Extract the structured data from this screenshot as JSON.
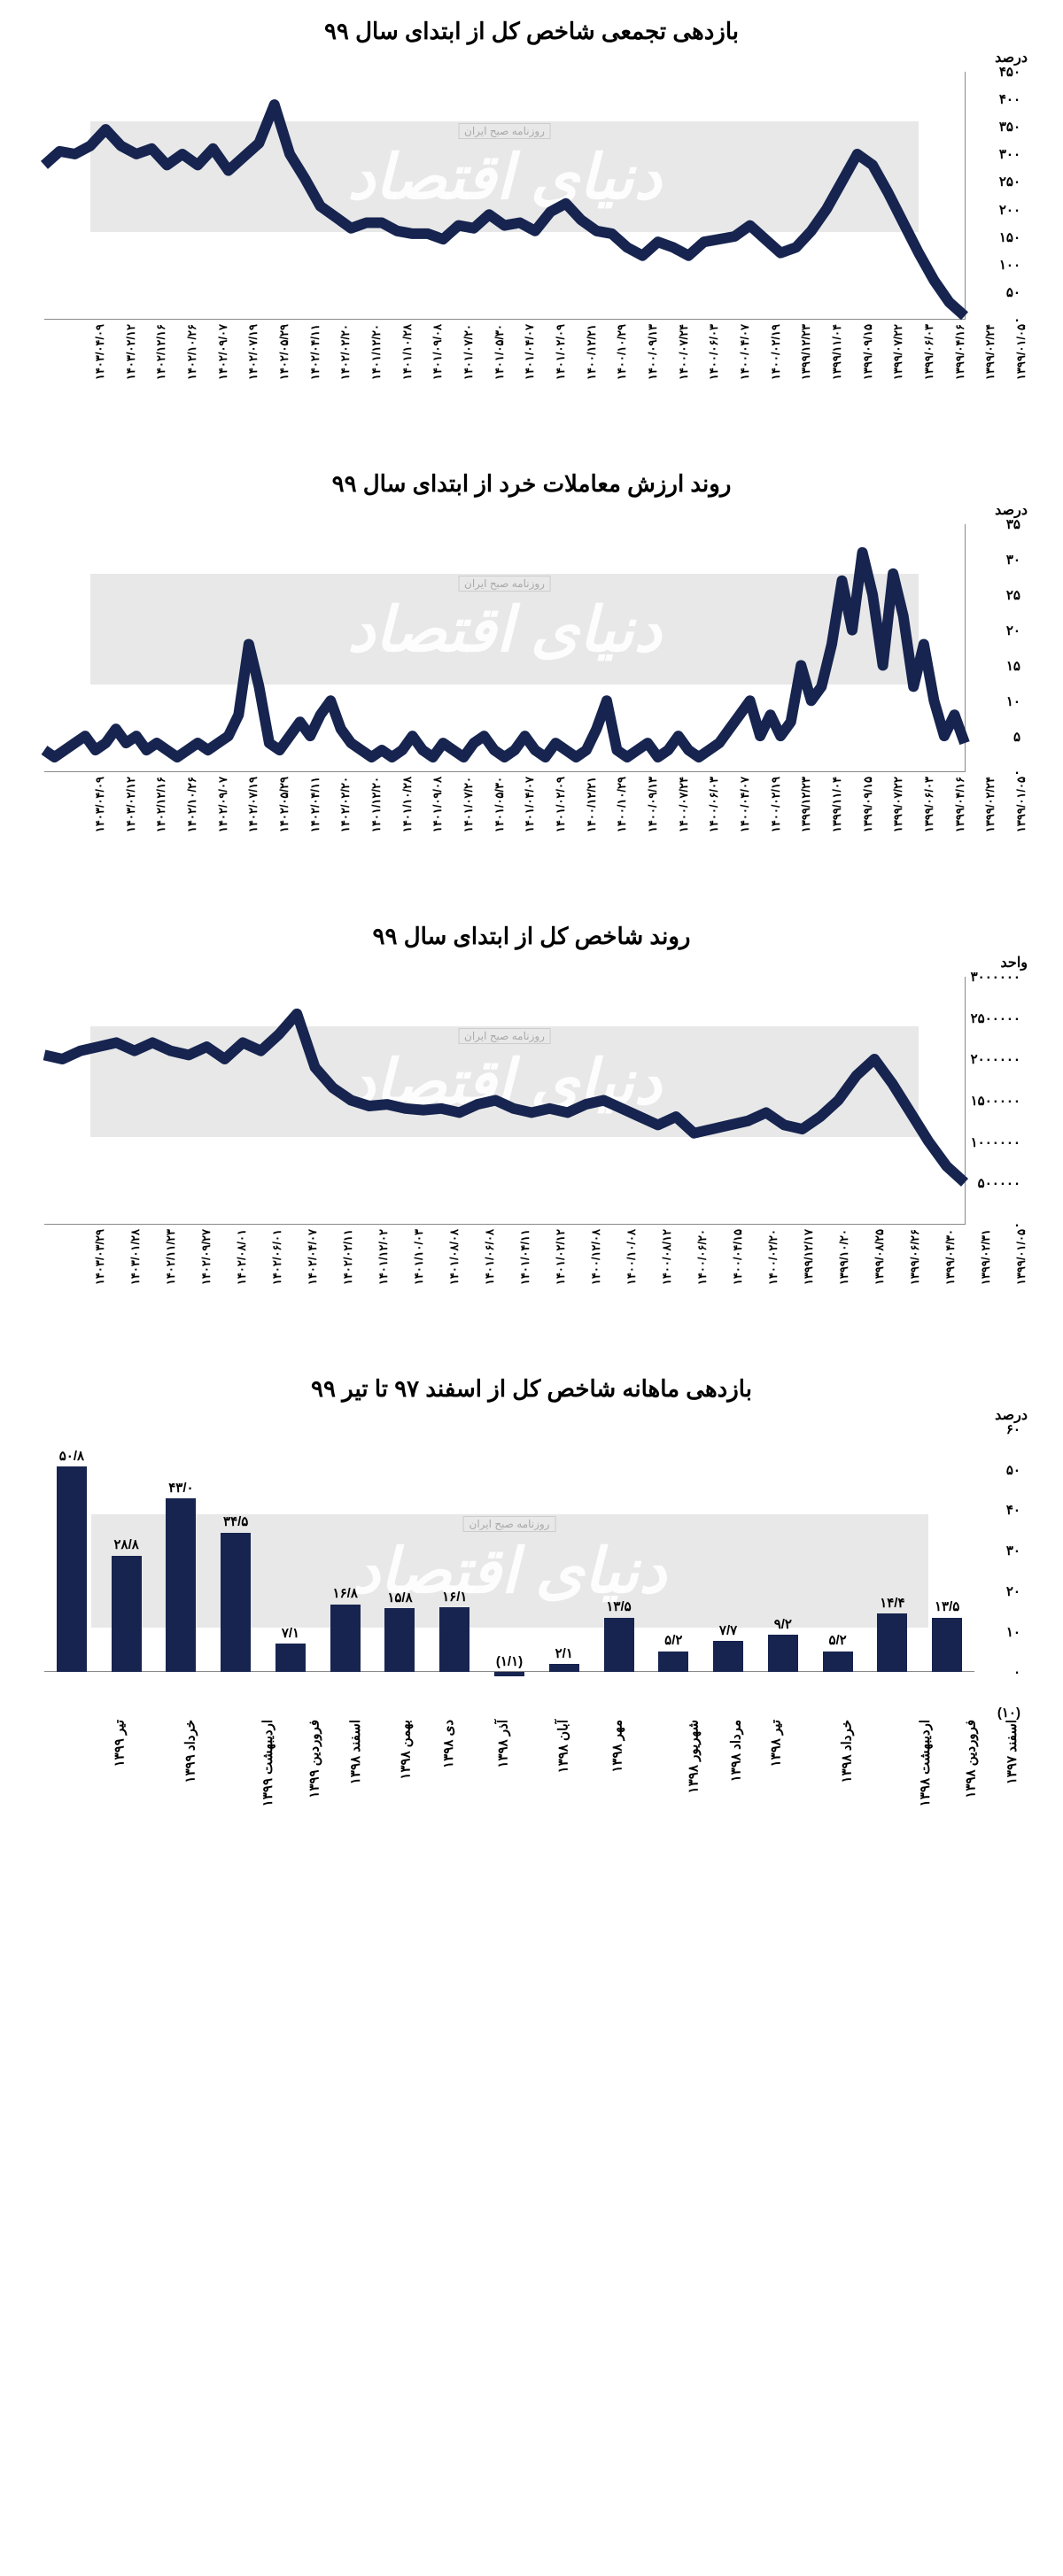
{
  "colors": {
    "line": "#16244f",
    "bar": "#16244f",
    "bg": "#ffffff",
    "band": "#e8e8e8",
    "axis": "#888888"
  },
  "watermark": {
    "main": "دنیای اقتصاد",
    "caption": "روزنامه صبح ایران"
  },
  "chart1": {
    "type": "line",
    "title": "بازدهی تجمعی شاخص کل از ابتدای سال ۹۹",
    "y_unit": "درصد",
    "ylim": [
      0,
      450
    ],
    "y_ticks": [
      0,
      50,
      100,
      150,
      200,
      250,
      300,
      350,
      400,
      450
    ],
    "y_tick_labels": [
      "۰",
      "۵۰",
      "۱۰۰",
      "۱۵۰",
      "۲۰۰",
      "۲۵۰",
      "۳۰۰",
      "۳۵۰",
      "۴۰۰",
      "۴۵۰"
    ],
    "x_labels": [
      "۱۳۹۹/۰۱/۰۵",
      "۱۳۹۹/۰۲/۲۴",
      "۱۳۹۹/۰۴/۱۶",
      "۱۳۹۹/۰۶/۰۳",
      "۱۳۹۹/۰۷/۲۲",
      "۱۳۹۹/۰۹/۱۵",
      "۱۳۹۹/۱۱/۰۴",
      "۱۳۹۹/۱۲/۲۳",
      "۱۴۰۰/۰۲/۱۹",
      "۱۴۰۰/۰۴/۰۷",
      "۱۴۰۰/۰۶/۰۳",
      "۱۴۰۰/۰۷/۲۴",
      "۱۴۰۰/۰۹/۱۳",
      "۱۴۰۰/۱۰/۲۹",
      "۱۴۰۰/۱۲/۲۱",
      "۱۴۰۱/۰۲/۰۹",
      "۱۴۰۱/۰۴/۰۷",
      "۱۴۰۱/۰۵/۳۰",
      "۱۴۰۱/۰۷/۲۰",
      "۱۴۰۱/۰۹/۰۸",
      "۱۴۰۱/۱۰/۲۸",
      "۱۴۰۱/۱۲/۲۰",
      "۱۴۰۲/۰۲/۲۰",
      "۱۴۰۲/۰۴/۱۱",
      "۱۴۰۲/۰۵/۲۹",
      "۱۴۰۲/۰۷/۱۹",
      "۱۴۰۲/۰۹/۰۷",
      "۱۴۰۲/۱۰/۲۶",
      "۱۴۰۲/۱۲/۱۶",
      "۱۴۰۳/۰۲/۱۲",
      "۱۴۰۳/۰۴/۰۹"
    ],
    "values": [
      5,
      30,
      70,
      120,
      175,
      230,
      280,
      300,
      250,
      200,
      160,
      130,
      120,
      145,
      170,
      150,
      145,
      140,
      115,
      130,
      140,
      115,
      130,
      155,
      160,
      180,
      210,
      195,
      160,
      175,
      170,
      190,
      165,
      170,
      145,
      155,
      155,
      160,
      175,
      175,
      165,
      185,
      205,
      255,
      300,
      390,
      320,
      295,
      270,
      310,
      280,
      300,
      280,
      310,
      300,
      315,
      345,
      315,
      300,
      305,
      280
    ]
  },
  "chart2": {
    "type": "line",
    "title": "روند ارزش معاملات خرد از ابتدای سال ۹۹",
    "y_unit": "درصد",
    "ylim": [
      0,
      35
    ],
    "y_ticks": [
      0,
      5,
      10,
      15,
      20,
      25,
      30,
      35
    ],
    "y_tick_labels": [
      "۰",
      "۵",
      "۱۰",
      "۱۵",
      "۲۰",
      "۲۵",
      "۳۰",
      "۳۵"
    ],
    "x_labels": [
      "۱۳۹۹/۰۱/۰۵",
      "۱۳۹۹/۰۲/۲۴",
      "۱۳۹۹/۰۴/۱۶",
      "۱۳۹۹/۰۶/۰۳",
      "۱۳۹۹/۰۷/۲۲",
      "۱۳۹۹/۰۹/۱۵",
      "۱۳۹۹/۱۱/۰۴",
      "۱۳۹۹/۱۲/۲۳",
      "۱۴۰۰/۰۲/۱۹",
      "۱۴۰۰/۰۴/۰۷",
      "۱۴۰۰/۰۶/۰۳",
      "۱۴۰۰/۰۷/۲۴",
      "۱۴۰۰/۰۹/۱۳",
      "۱۴۰۰/۱۰/۲۹",
      "۱۴۰۰/۱۲/۲۱",
      "۱۴۰۱/۰۲/۰۹",
      "۱۴۰۱/۰۴/۰۷",
      "۱۴۰۱/۰۵/۳۰",
      "۱۴۰۱/۰۷/۲۰",
      "۱۴۰۱/۰۹/۰۸",
      "۱۴۰۱/۱۰/۲۸",
      "۱۴۰۱/۱۲/۲۰",
      "۱۴۰۲/۰۲/۲۰",
      "۱۴۰۲/۰۴/۱۱",
      "۱۴۰۲/۰۵/۲۹",
      "۱۴۰۲/۰۷/۱۹",
      "۱۴۰۲/۰۹/۰۷",
      "۱۴۰۲/۱۰/۲۶",
      "۱۴۰۲/۱۲/۱۶",
      "۱۴۰۳/۰۲/۱۲",
      "۱۴۰۳/۰۴/۰۹"
    ],
    "values": [
      4,
      8,
      5,
      10,
      18,
      12,
      22,
      28,
      15,
      25,
      31,
      20,
      27,
      18,
      12,
      10,
      15,
      7,
      5,
      8,
      5,
      10,
      8,
      6,
      4,
      3,
      2,
      3,
      5,
      3,
      2,
      4,
      3,
      2,
      3,
      10,
      6,
      3,
      2,
      3,
      4,
      2,
      3,
      5,
      3,
      2,
      3,
      5,
      4,
      2,
      3,
      4,
      2,
      3,
      5,
      3,
      2,
      3,
      2,
      3,
      4,
      6,
      10,
      8,
      5,
      7,
      5,
      3,
      4,
      12,
      18,
      8,
      5,
      4,
      3,
      4,
      3,
      2,
      3,
      4,
      3,
      5,
      4,
      6,
      4,
      3,
      5,
      4,
      3,
      2,
      3
    ]
  },
  "chart3": {
    "type": "line",
    "title": "روند شاخص کل از ابتدای سال ۹۹",
    "y_unit": "واحد",
    "ylim": [
      0,
      3000000
    ],
    "y_ticks": [
      0,
      500000,
      1000000,
      1500000,
      2000000,
      2500000,
      3000000
    ],
    "y_tick_labels": [
      "۰",
      "۵۰۰۰۰۰",
      "۱۰۰۰۰۰۰",
      "۱۵۰۰۰۰۰",
      "۲۰۰۰۰۰۰",
      "۲۵۰۰۰۰۰",
      "۳۰۰۰۰۰۰"
    ],
    "x_labels": [
      "۱۳۹۹/۰۱/۰۵",
      "۱۳۹۹/۰۲/۳۱",
      "۱۳۹۹/۰۴/۳۰",
      "۱۳۹۹/۰۶/۲۶",
      "۱۳۹۹/۰۸/۲۵",
      "۱۳۹۹/۱۰/۲۰",
      "۱۳۹۹/۱۲/۱۷",
      "۱۴۰۰/۰۲/۲۰",
      "۱۴۰۰/۰۴/۱۵",
      "۱۴۰۰/۰۶/۲۰",
      "۱۴۰۰/۰۸/۱۲",
      "۱۴۰۰/۱۰/۰۸",
      "۱۴۰۰/۱۲/۰۸",
      "۱۴۰۱/۰۲/۱۲",
      "۱۴۰۱/۰۴/۱۱",
      "۱۴۰۱/۰۶/۰۸",
      "۱۴۰۱/۰۸/۰۸",
      "۱۴۰۱/۱۰/۰۳",
      "۱۴۰۱/۱۲/۰۲",
      "۱۴۰۲/۰۲/۱۱",
      "۱۴۰۲/۰۴/۰۷",
      "۱۴۰۲/۰۶/۰۱",
      "۱۴۰۲/۰۸/۰۱",
      "۱۴۰۲/۰۹/۲۷",
      "۱۴۰۲/۱۱/۲۳",
      "۱۴۰۳/۰۱/۲۸",
      "۱۴۰۳/۰۳/۲۹"
    ],
    "values": [
      500000,
      700000,
      1000000,
      1350000,
      1700000,
      2000000,
      1800000,
      1500000,
      1300000,
      1150000,
      1200000,
      1350000,
      1250000,
      1200000,
      1150000,
      1100000,
      1300000,
      1200000,
      1300000,
      1400000,
      1500000,
      1450000,
      1350000,
      1400000,
      1350000,
      1400000,
      1500000,
      1450000,
      1350000,
      1400000,
      1380000,
      1400000,
      1450000,
      1430000,
      1500000,
      1650000,
      1900000,
      2550000,
      2300000,
      2100000,
      2200000,
      2000000,
      2150000,
      2050000,
      2100000,
      2200000,
      2100000,
      2200000,
      2150000,
      2100000,
      2000000,
      2050000
    ]
  },
  "chart4": {
    "type": "bar",
    "title": "بازدهی ماهانه شاخص کل از اسفند ۹۷ تا تیر ۹۹",
    "y_unit": "درصد",
    "ylim": [
      -10,
      60
    ],
    "y_ticks": [
      -10,
      0,
      10,
      20,
      30,
      40,
      50,
      60
    ],
    "y_tick_labels": [
      "(۱۰)",
      "۰",
      "۱۰",
      "۲۰",
      "۳۰",
      "۴۰",
      "۵۰",
      "۶۰"
    ],
    "categories": [
      "اسفند ۱۳۹۷",
      "فروردین ۱۳۹۸",
      "اردیبهشت ۱۳۹۸",
      "خرداد ۱۳۹۸",
      "تیر ۱۳۹۸",
      "مرداد ۱۳۹۸",
      "شهریور ۱۳۹۸",
      "مهر ۱۳۹۸",
      "آبان ۱۳۹۸",
      "آذر ۱۳۹۸",
      "دی ۱۳۹۸",
      "بهمن ۱۳۹۸",
      "اسفند ۱۳۹۸",
      "فروردین ۱۳۹۹",
      "اردیبهشت ۱۳۹۹",
      "خرداد ۱۳۹۹",
      "تیر ۱۳۹۹"
    ],
    "values": [
      13.5,
      14.4,
      5.2,
      9.2,
      7.7,
      5.2,
      13.5,
      2.1,
      -1.1,
      16.1,
      15.8,
      16.8,
      7.1,
      34.5,
      43.0,
      28.8,
      50.8
    ],
    "value_labels": [
      "۱۳/۵",
      "۱۴/۴",
      "۵/۲",
      "۹/۲",
      "۷/۷",
      "۵/۲",
      "۱۳/۵",
      "۲/۱",
      "(۱/۱)",
      "۱۶/۱",
      "۱۵/۸",
      "۱۶/۸",
      "۷/۱",
      "۳۴/۵",
      "۴۳/۰",
      "۲۸/۸",
      "۵۰/۸"
    ],
    "bar_width": 0.55
  }
}
